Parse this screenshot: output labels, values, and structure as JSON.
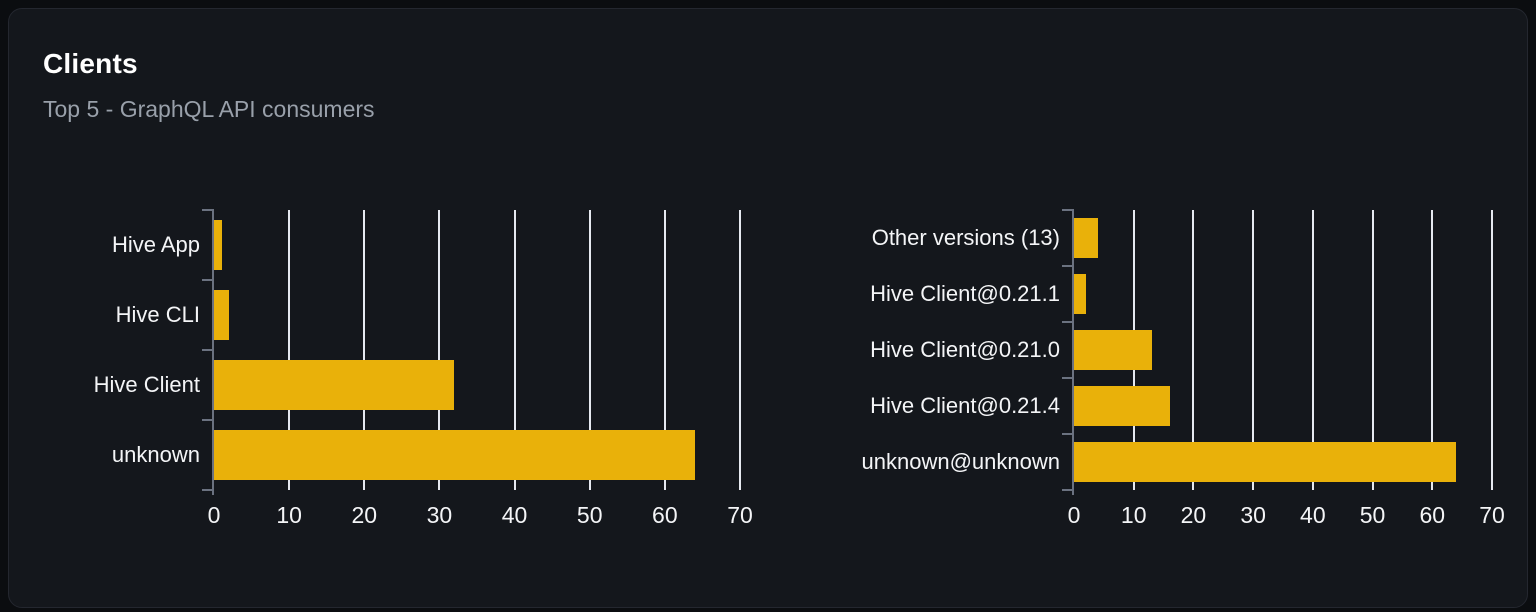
{
  "card": {
    "title": "Clients",
    "subtitle": "Top 5 - GraphQL API consumers"
  },
  "theme": {
    "outer_bg": "#0b0d10",
    "card_bg": "#14171c",
    "card_border": "#24272f",
    "title_color": "#ffffff",
    "subtitle_color": "#99a0aa",
    "label_color": "#f4f5f7",
    "bar_color": "#e9b10a",
    "grid_color": "#e6e9f0",
    "axis_color": "#6b7280"
  },
  "chart_data": [
    {
      "type": "bar",
      "orientation": "horizontal",
      "title": "",
      "categories": [
        "Hive App",
        "Hive CLI",
        "Hive Client",
        "unknown"
      ],
      "values": [
        1,
        2,
        32,
        64
      ],
      "xlim": [
        0,
        70
      ],
      "xticks": [
        0,
        10,
        20,
        30,
        40,
        50,
        60,
        70
      ],
      "grid": true,
      "legend": "none"
    },
    {
      "type": "bar",
      "orientation": "horizontal",
      "title": "",
      "categories": [
        "Other versions (13)",
        "Hive Client@0.21.1",
        "Hive Client@0.21.0",
        "Hive Client@0.21.4",
        "unknown@unknown"
      ],
      "values": [
        4,
        2,
        13,
        16,
        64
      ],
      "xlim": [
        0,
        70
      ],
      "xticks": [
        0,
        10,
        20,
        30,
        40,
        50,
        60,
        70
      ],
      "grid": true,
      "legend": "none"
    }
  ]
}
